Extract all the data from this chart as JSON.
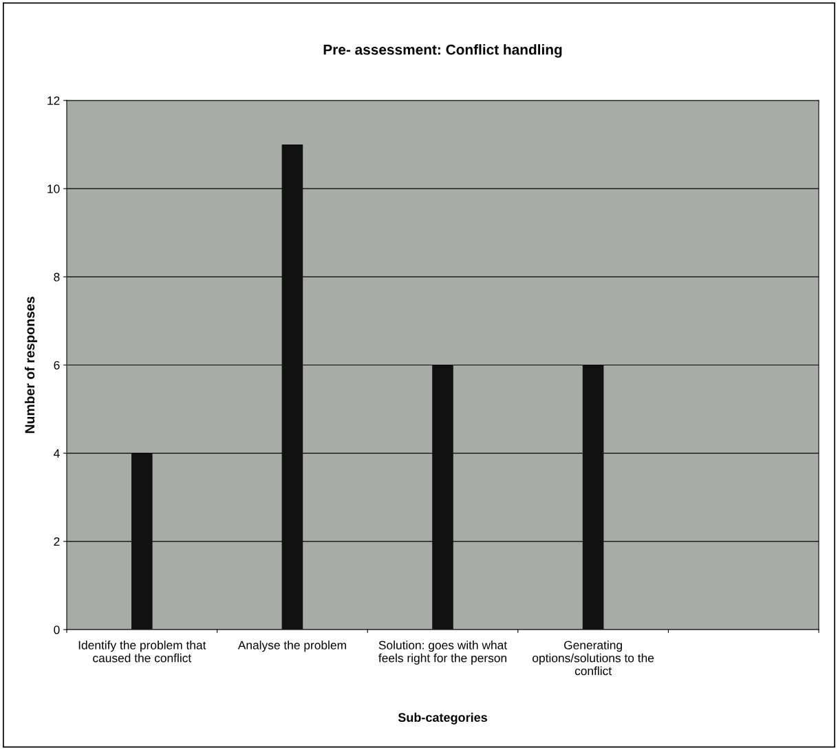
{
  "chart_data": {
    "type": "bar",
    "title": "Pre- assessment: Conflict handling",
    "xlabel": "Sub-categories",
    "ylabel": "Number of responses",
    "categories": [
      "Identify the problem that caused the conflict",
      "Analyse the problem",
      "Solution: goes with what feels right for the person",
      "Generating options/solutions to the conflict",
      null
    ],
    "values": [
      4,
      11,
      6,
      6,
      null
    ],
    "color": "#111111",
    "ylim": [
      0,
      12
    ],
    "yticks": [
      0,
      2,
      4,
      6,
      8,
      10,
      12
    ],
    "grid": "y",
    "legend": false
  }
}
